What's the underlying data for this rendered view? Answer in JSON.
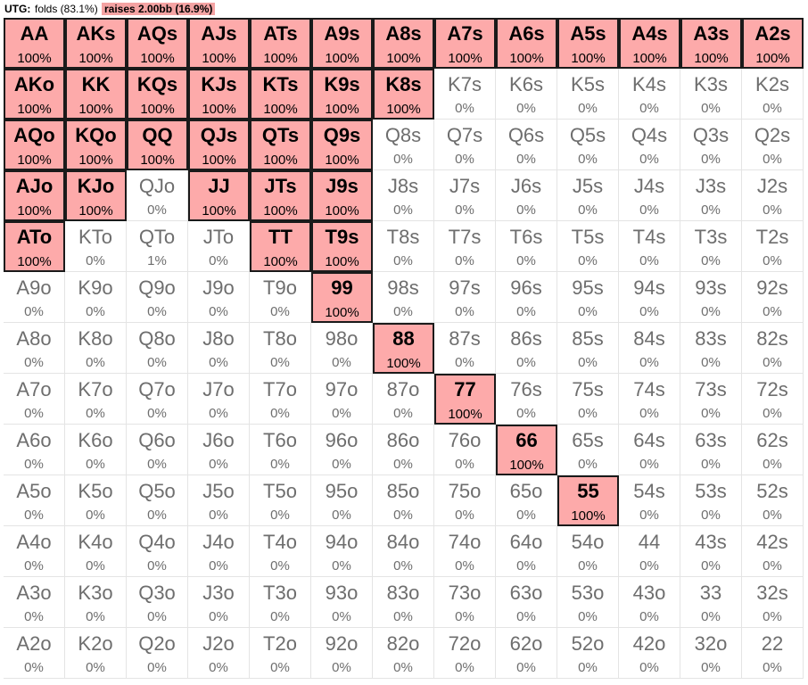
{
  "legend": {
    "position": "UTG:",
    "folds": "folds (83.1%)",
    "raises": "raises 2.00bb (16.9%)",
    "raise_color": "#fdaaaa"
  },
  "grid": [
    [
      [
        "AA",
        "100%",
        1
      ],
      [
        "AKs",
        "100%",
        1
      ],
      [
        "AQs",
        "100%",
        1
      ],
      [
        "AJs",
        "100%",
        1
      ],
      [
        "ATs",
        "100%",
        1
      ],
      [
        "A9s",
        "100%",
        1
      ],
      [
        "A8s",
        "100%",
        1
      ],
      [
        "A7s",
        "100%",
        1
      ],
      [
        "A6s",
        "100%",
        1
      ],
      [
        "A5s",
        "100%",
        1
      ],
      [
        "A4s",
        "100%",
        1
      ],
      [
        "A3s",
        "100%",
        1
      ],
      [
        "A2s",
        "100%",
        1
      ]
    ],
    [
      [
        "AKo",
        "100%",
        1
      ],
      [
        "KK",
        "100%",
        1
      ],
      [
        "KQs",
        "100%",
        1
      ],
      [
        "KJs",
        "100%",
        1
      ],
      [
        "KTs",
        "100%",
        1
      ],
      [
        "K9s",
        "100%",
        1
      ],
      [
        "K8s",
        "100%",
        1
      ],
      [
        "K7s",
        "0%",
        0
      ],
      [
        "K6s",
        "0%",
        0
      ],
      [
        "K5s",
        "0%",
        0
      ],
      [
        "K4s",
        "0%",
        0
      ],
      [
        "K3s",
        "0%",
        0
      ],
      [
        "K2s",
        "0%",
        0
      ]
    ],
    [
      [
        "AQo",
        "100%",
        1
      ],
      [
        "KQo",
        "100%",
        1
      ],
      [
        "QQ",
        "100%",
        1
      ],
      [
        "QJs",
        "100%",
        1
      ],
      [
        "QTs",
        "100%",
        1
      ],
      [
        "Q9s",
        "100%",
        1
      ],
      [
        "Q8s",
        "0%",
        0
      ],
      [
        "Q7s",
        "0%",
        0
      ],
      [
        "Q6s",
        "0%",
        0
      ],
      [
        "Q5s",
        "0%",
        0
      ],
      [
        "Q4s",
        "0%",
        0
      ],
      [
        "Q3s",
        "0%",
        0
      ],
      [
        "Q2s",
        "0%",
        0
      ]
    ],
    [
      [
        "AJo",
        "100%",
        1
      ],
      [
        "KJo",
        "100%",
        1
      ],
      [
        "QJo",
        "0%",
        0
      ],
      [
        "JJ",
        "100%",
        1
      ],
      [
        "JTs",
        "100%",
        1
      ],
      [
        "J9s",
        "100%",
        1
      ],
      [
        "J8s",
        "0%",
        0
      ],
      [
        "J7s",
        "0%",
        0
      ],
      [
        "J6s",
        "0%",
        0
      ],
      [
        "J5s",
        "0%",
        0
      ],
      [
        "J4s",
        "0%",
        0
      ],
      [
        "J3s",
        "0%",
        0
      ],
      [
        "J2s",
        "0%",
        0
      ]
    ],
    [
      [
        "ATo",
        "100%",
        1
      ],
      [
        "KTo",
        "0%",
        0
      ],
      [
        "QTo",
        "1%",
        0
      ],
      [
        "JTo",
        "0%",
        0
      ],
      [
        "TT",
        "100%",
        1
      ],
      [
        "T9s",
        "100%",
        1
      ],
      [
        "T8s",
        "0%",
        0
      ],
      [
        "T7s",
        "0%",
        0
      ],
      [
        "T6s",
        "0%",
        0
      ],
      [
        "T5s",
        "0%",
        0
      ],
      [
        "T4s",
        "0%",
        0
      ],
      [
        "T3s",
        "0%",
        0
      ],
      [
        "T2s",
        "0%",
        0
      ]
    ],
    [
      [
        "A9o",
        "0%",
        0
      ],
      [
        "K9o",
        "0%",
        0
      ],
      [
        "Q9o",
        "0%",
        0
      ],
      [
        "J9o",
        "0%",
        0
      ],
      [
        "T9o",
        "0%",
        0
      ],
      [
        "99",
        "100%",
        1
      ],
      [
        "98s",
        "0%",
        0
      ],
      [
        "97s",
        "0%",
        0
      ],
      [
        "96s",
        "0%",
        0
      ],
      [
        "95s",
        "0%",
        0
      ],
      [
        "94s",
        "0%",
        0
      ],
      [
        "93s",
        "0%",
        0
      ],
      [
        "92s",
        "0%",
        0
      ]
    ],
    [
      [
        "A8o",
        "0%",
        0
      ],
      [
        "K8o",
        "0%",
        0
      ],
      [
        "Q8o",
        "0%",
        0
      ],
      [
        "J8o",
        "0%",
        0
      ],
      [
        "T8o",
        "0%",
        0
      ],
      [
        "98o",
        "0%",
        0
      ],
      [
        "88",
        "100%",
        1
      ],
      [
        "87s",
        "0%",
        0
      ],
      [
        "86s",
        "0%",
        0
      ],
      [
        "85s",
        "0%",
        0
      ],
      [
        "84s",
        "0%",
        0
      ],
      [
        "83s",
        "0%",
        0
      ],
      [
        "82s",
        "0%",
        0
      ]
    ],
    [
      [
        "A7o",
        "0%",
        0
      ],
      [
        "K7o",
        "0%",
        0
      ],
      [
        "Q7o",
        "0%",
        0
      ],
      [
        "J7o",
        "0%",
        0
      ],
      [
        "T7o",
        "0%",
        0
      ],
      [
        "97o",
        "0%",
        0
      ],
      [
        "87o",
        "0%",
        0
      ],
      [
        "77",
        "100%",
        1
      ],
      [
        "76s",
        "0%",
        0
      ],
      [
        "75s",
        "0%",
        0
      ],
      [
        "74s",
        "0%",
        0
      ],
      [
        "73s",
        "0%",
        0
      ],
      [
        "72s",
        "0%",
        0
      ]
    ],
    [
      [
        "A6o",
        "0%",
        0
      ],
      [
        "K6o",
        "0%",
        0
      ],
      [
        "Q6o",
        "0%",
        0
      ],
      [
        "J6o",
        "0%",
        0
      ],
      [
        "T6o",
        "0%",
        0
      ],
      [
        "96o",
        "0%",
        0
      ],
      [
        "86o",
        "0%",
        0
      ],
      [
        "76o",
        "0%",
        0
      ],
      [
        "66",
        "100%",
        1
      ],
      [
        "65s",
        "0%",
        0
      ],
      [
        "64s",
        "0%",
        0
      ],
      [
        "63s",
        "0%",
        0
      ],
      [
        "62s",
        "0%",
        0
      ]
    ],
    [
      [
        "A5o",
        "0%",
        0
      ],
      [
        "K5o",
        "0%",
        0
      ],
      [
        "Q5o",
        "0%",
        0
      ],
      [
        "J5o",
        "0%",
        0
      ],
      [
        "T5o",
        "0%",
        0
      ],
      [
        "95o",
        "0%",
        0
      ],
      [
        "85o",
        "0%",
        0
      ],
      [
        "75o",
        "0%",
        0
      ],
      [
        "65o",
        "0%",
        0
      ],
      [
        "55",
        "100%",
        1
      ],
      [
        "54s",
        "0%",
        0
      ],
      [
        "53s",
        "0%",
        0
      ],
      [
        "52s",
        "0%",
        0
      ]
    ],
    [
      [
        "A4o",
        "0%",
        0
      ],
      [
        "K4o",
        "0%",
        0
      ],
      [
        "Q4o",
        "0%",
        0
      ],
      [
        "J4o",
        "0%",
        0
      ],
      [
        "T4o",
        "0%",
        0
      ],
      [
        "94o",
        "0%",
        0
      ],
      [
        "84o",
        "0%",
        0
      ],
      [
        "74o",
        "0%",
        0
      ],
      [
        "64o",
        "0%",
        0
      ],
      [
        "54o",
        "0%",
        0
      ],
      [
        "44",
        "0%",
        0
      ],
      [
        "43s",
        "0%",
        0
      ],
      [
        "42s",
        "0%",
        0
      ]
    ],
    [
      [
        "A3o",
        "0%",
        0
      ],
      [
        "K3o",
        "0%",
        0
      ],
      [
        "Q3o",
        "0%",
        0
      ],
      [
        "J3o",
        "0%",
        0
      ],
      [
        "T3o",
        "0%",
        0
      ],
      [
        "93o",
        "0%",
        0
      ],
      [
        "83o",
        "0%",
        0
      ],
      [
        "73o",
        "0%",
        0
      ],
      [
        "63o",
        "0%",
        0
      ],
      [
        "53o",
        "0%",
        0
      ],
      [
        "43o",
        "0%",
        0
      ],
      [
        "33",
        "0%",
        0
      ],
      [
        "32s",
        "0%",
        0
      ]
    ],
    [
      [
        "A2o",
        "0%",
        0
      ],
      [
        "K2o",
        "0%",
        0
      ],
      [
        "Q2o",
        "0%",
        0
      ],
      [
        "J2o",
        "0%",
        0
      ],
      [
        "T2o",
        "0%",
        0
      ],
      [
        "92o",
        "0%",
        0
      ],
      [
        "82o",
        "0%",
        0
      ],
      [
        "72o",
        "0%",
        0
      ],
      [
        "62o",
        "0%",
        0
      ],
      [
        "52o",
        "0%",
        0
      ],
      [
        "42o",
        "0%",
        0
      ],
      [
        "32o",
        "0%",
        0
      ],
      [
        "22",
        "0%",
        0
      ]
    ]
  ]
}
